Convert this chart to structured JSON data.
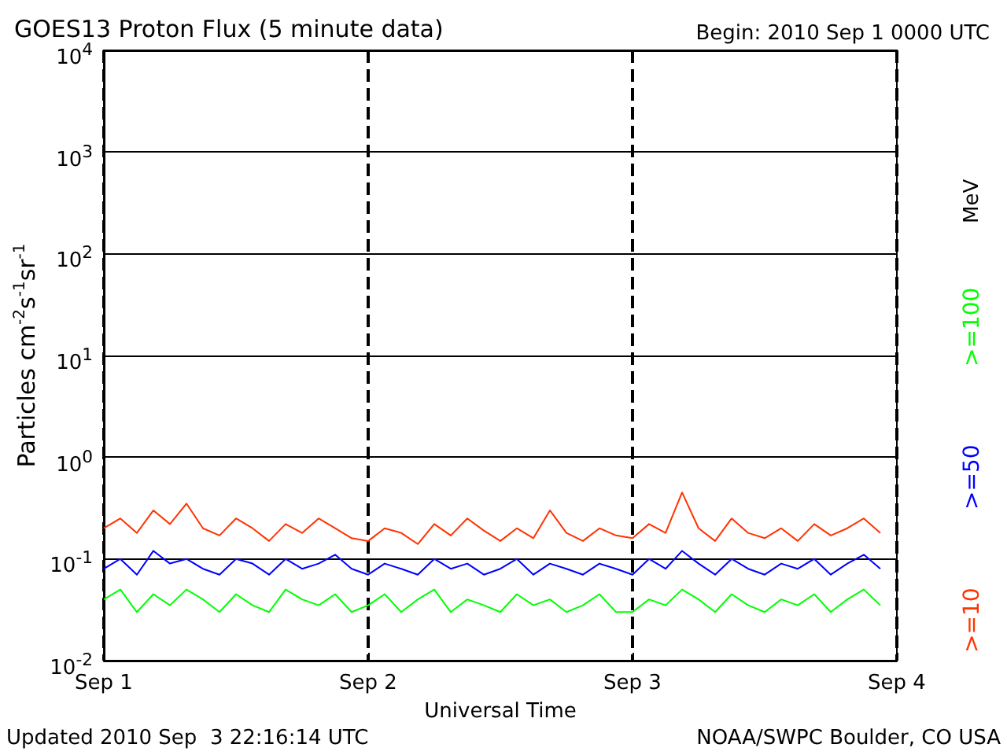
{
  "chart_data": {
    "type": "line",
    "title": "GOES13 Proton Flux (5 minute data)",
    "subtitle": "Begin: 2010 Sep 1 0000 UTC",
    "xlabel": "Universal Time",
    "ylabel": "Particles cm$^{-2}$s$^{-1}$sr$^{-1}$",
    "legend_title": "MeV",
    "annotations": [
      "Updated 2010 Sep  3 22:16:14 UTC",
      "NOAA/SWPC Boulder, CO USA"
    ],
    "log": "y",
    "grid": true,
    "legend": "right",
    "marker": "none",
    "line_style": "solid",
    "xlim": [
      "2010-09-01T00:00",
      "2010-09-04T00:00"
    ],
    "xticks": [
      {
        "value": "2010-09-01T00:00",
        "label": "Sep 1"
      },
      {
        "value": "2010-09-02T00:00",
        "label": "Sep 2"
      },
      {
        "value": "2010-09-03T00:00",
        "label": "Sep 3"
      },
      {
        "value": "2010-09-04T00:00",
        "label": "Sep 4"
      }
    ],
    "ylim": [
      0.01,
      10000
    ],
    "yticks": [
      {
        "value": 0.01,
        "label": "10$^{-2}$"
      },
      {
        "value": 0.1,
        "label": "10$^{-1}$"
      },
      {
        "value": 1,
        "label": "10$^{0}$"
      },
      {
        "value": 10,
        "label": "10$^{1}$"
      },
      {
        "value": 100,
        "label": "10$^{2}$"
      },
      {
        "value": 1000,
        "label": "10$^{3}$"
      },
      {
        "value": 10000,
        "label": "10$^{4}$"
      }
    ],
    "x": [
      "2010-09-01T00:00",
      "2010-09-01T01:30",
      "2010-09-01T03:00",
      "2010-09-01T04:30",
      "2010-09-01T06:00",
      "2010-09-01T07:30",
      "2010-09-01T09:00",
      "2010-09-01T10:30",
      "2010-09-01T12:00",
      "2010-09-01T13:30",
      "2010-09-01T15:00",
      "2010-09-01T16:30",
      "2010-09-01T18:00",
      "2010-09-01T19:30",
      "2010-09-01T21:00",
      "2010-09-01T22:30",
      "2010-09-02T00:00",
      "2010-09-02T01:30",
      "2010-09-02T03:00",
      "2010-09-02T04:30",
      "2010-09-02T06:00",
      "2010-09-02T07:30",
      "2010-09-02T09:00",
      "2010-09-02T10:30",
      "2010-09-02T12:00",
      "2010-09-02T13:30",
      "2010-09-02T15:00",
      "2010-09-02T16:30",
      "2010-09-02T18:00",
      "2010-09-02T19:30",
      "2010-09-02T21:00",
      "2010-09-02T22:30",
      "2010-09-03T00:00",
      "2010-09-03T01:30",
      "2010-09-03T03:00",
      "2010-09-03T04:30",
      "2010-09-03T06:00",
      "2010-09-03T07:30",
      "2010-09-03T09:00",
      "2010-09-03T10:30",
      "2010-09-03T12:00",
      "2010-09-03T13:30",
      "2010-09-03T15:00",
      "2010-09-03T16:30",
      "2010-09-03T18:00",
      "2010-09-03T19:30",
      "2010-09-03T21:00",
      "2010-09-03T22:30"
    ],
    "series": [
      {
        "name": ">=10",
        "color": "#ff3300",
        "values": [
          0.2,
          0.25,
          0.18,
          0.3,
          0.22,
          0.35,
          0.2,
          0.17,
          0.25,
          0.2,
          0.15,
          0.22,
          0.18,
          0.25,
          0.2,
          0.16,
          0.15,
          0.2,
          0.18,
          0.14,
          0.22,
          0.17,
          0.25,
          0.19,
          0.15,
          0.2,
          0.16,
          0.3,
          0.18,
          0.15,
          0.2,
          0.17,
          0.16,
          0.22,
          0.18,
          0.45,
          0.2,
          0.15,
          0.25,
          0.18,
          0.16,
          0.2,
          0.15,
          0.22,
          0.17,
          0.2,
          0.25,
          0.18
        ]
      },
      {
        "name": ">=50",
        "color": "#0000ff",
        "values": [
          0.08,
          0.1,
          0.07,
          0.12,
          0.09,
          0.1,
          0.08,
          0.07,
          0.1,
          0.09,
          0.07,
          0.1,
          0.08,
          0.09,
          0.11,
          0.08,
          0.07,
          0.09,
          0.08,
          0.07,
          0.1,
          0.08,
          0.09,
          0.07,
          0.08,
          0.1,
          0.07,
          0.09,
          0.08,
          0.07,
          0.09,
          0.08,
          0.07,
          0.1,
          0.08,
          0.12,
          0.09,
          0.07,
          0.1,
          0.08,
          0.07,
          0.09,
          0.08,
          0.1,
          0.07,
          0.09,
          0.11,
          0.08
        ]
      },
      {
        "name": ">=100",
        "color": "#00ff00",
        "values": [
          0.04,
          0.05,
          0.03,
          0.045,
          0.035,
          0.05,
          0.04,
          0.03,
          0.045,
          0.035,
          0.03,
          0.05,
          0.04,
          0.035,
          0.045,
          0.03,
          0.035,
          0.045,
          0.03,
          0.04,
          0.05,
          0.03,
          0.04,
          0.035,
          0.03,
          0.045,
          0.035,
          0.04,
          0.03,
          0.035,
          0.045,
          0.03,
          0.03,
          0.04,
          0.035,
          0.05,
          0.04,
          0.03,
          0.045,
          0.035,
          0.03,
          0.04,
          0.035,
          0.045,
          0.03,
          0.04,
          0.05,
          0.035
        ]
      }
    ]
  }
}
